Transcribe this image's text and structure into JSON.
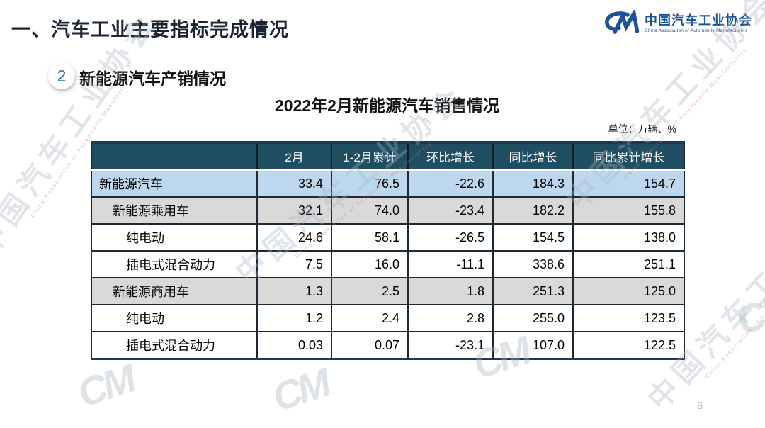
{
  "slide": {
    "section_title": "一、汽车工业主要指标完成情况",
    "badge_number": "2",
    "subsection_title": "新能源汽车产销情况",
    "table_title": "2022年2月新能源汽车销售情况",
    "unit_label": "单位：万辆、%",
    "page_number": "8"
  },
  "logo": {
    "glyph": "CM",
    "name_cn": "中国汽车工业协会",
    "name_en": "China Association of Automobile Manufacturers"
  },
  "watermark": {
    "text_cn": "中国汽车工业协会",
    "text_en": "China Association of Automobile Manufacturers",
    "glyph": "CM"
  },
  "table": {
    "columns": [
      "",
      "2月",
      "1-2月累计",
      "环比增长",
      "同比增长",
      "同比累计增长"
    ],
    "rows": [
      {
        "label": "新能源汽车",
        "indent": 0,
        "bg": "blue",
        "values": [
          "33.4",
          "76.5",
          "-22.6",
          "184.3",
          "154.7"
        ]
      },
      {
        "label": "新能源乘用车",
        "indent": 1,
        "bg": "gray",
        "values": [
          "32.1",
          "74.0",
          "-23.4",
          "182.2",
          "155.8"
        ]
      },
      {
        "label": "纯电动",
        "indent": 2,
        "bg": "white",
        "values": [
          "24.6",
          "58.1",
          "-26.5",
          "154.5",
          "138.0"
        ]
      },
      {
        "label": "插电式混合动力",
        "indent": 2,
        "bg": "white",
        "values": [
          "7.5",
          "16.0",
          "-11.1",
          "338.6",
          "251.1"
        ]
      },
      {
        "label": "新能源商用车",
        "indent": 1,
        "bg": "gray",
        "values": [
          "1.3",
          "2.5",
          "1.8",
          "251.3",
          "125.0"
        ]
      },
      {
        "label": "纯电动",
        "indent": 2,
        "bg": "white",
        "values": [
          "1.2",
          "2.4",
          "2.8",
          "255.0",
          "123.5"
        ]
      },
      {
        "label": "插电式混合动力",
        "indent": 2,
        "bg": "white",
        "values": [
          "0.03",
          "0.07",
          "-23.1",
          "107.0",
          "122.5"
        ]
      }
    ]
  },
  "chart_data": {
    "type": "table",
    "title": "2022年2月新能源汽车销售情况",
    "unit": "万辆、%",
    "columns": [
      "2月",
      "1-2月累计",
      "环比增长",
      "同比增长",
      "同比累计增长"
    ],
    "rows": {
      "新能源汽车": [
        33.4,
        76.5,
        -22.6,
        184.3,
        154.7
      ],
      "新能源乘用车": [
        32.1,
        74.0,
        -23.4,
        182.2,
        155.8
      ],
      "新能源乘用车-纯电动": [
        24.6,
        58.1,
        -26.5,
        154.5,
        138.0
      ],
      "新能源乘用车-插电式混合动力": [
        7.5,
        16.0,
        -11.1,
        338.6,
        251.1
      ],
      "新能源商用车": [
        1.3,
        2.5,
        1.8,
        251.3,
        125.0
      ],
      "新能源商用车-纯电动": [
        1.2,
        2.4,
        2.8,
        255.0,
        123.5
      ],
      "新能源商用车-插电式混合动力": [
        0.03,
        0.07,
        -23.1,
        107.0,
        122.5
      ]
    }
  },
  "colors": {
    "header_bg": "#1F4E63",
    "row_blue": "#BDD7EE",
    "row_gray": "#D9D9D9",
    "accent_blue": "#2E74B5",
    "logo_blue": "#1B5399"
  }
}
